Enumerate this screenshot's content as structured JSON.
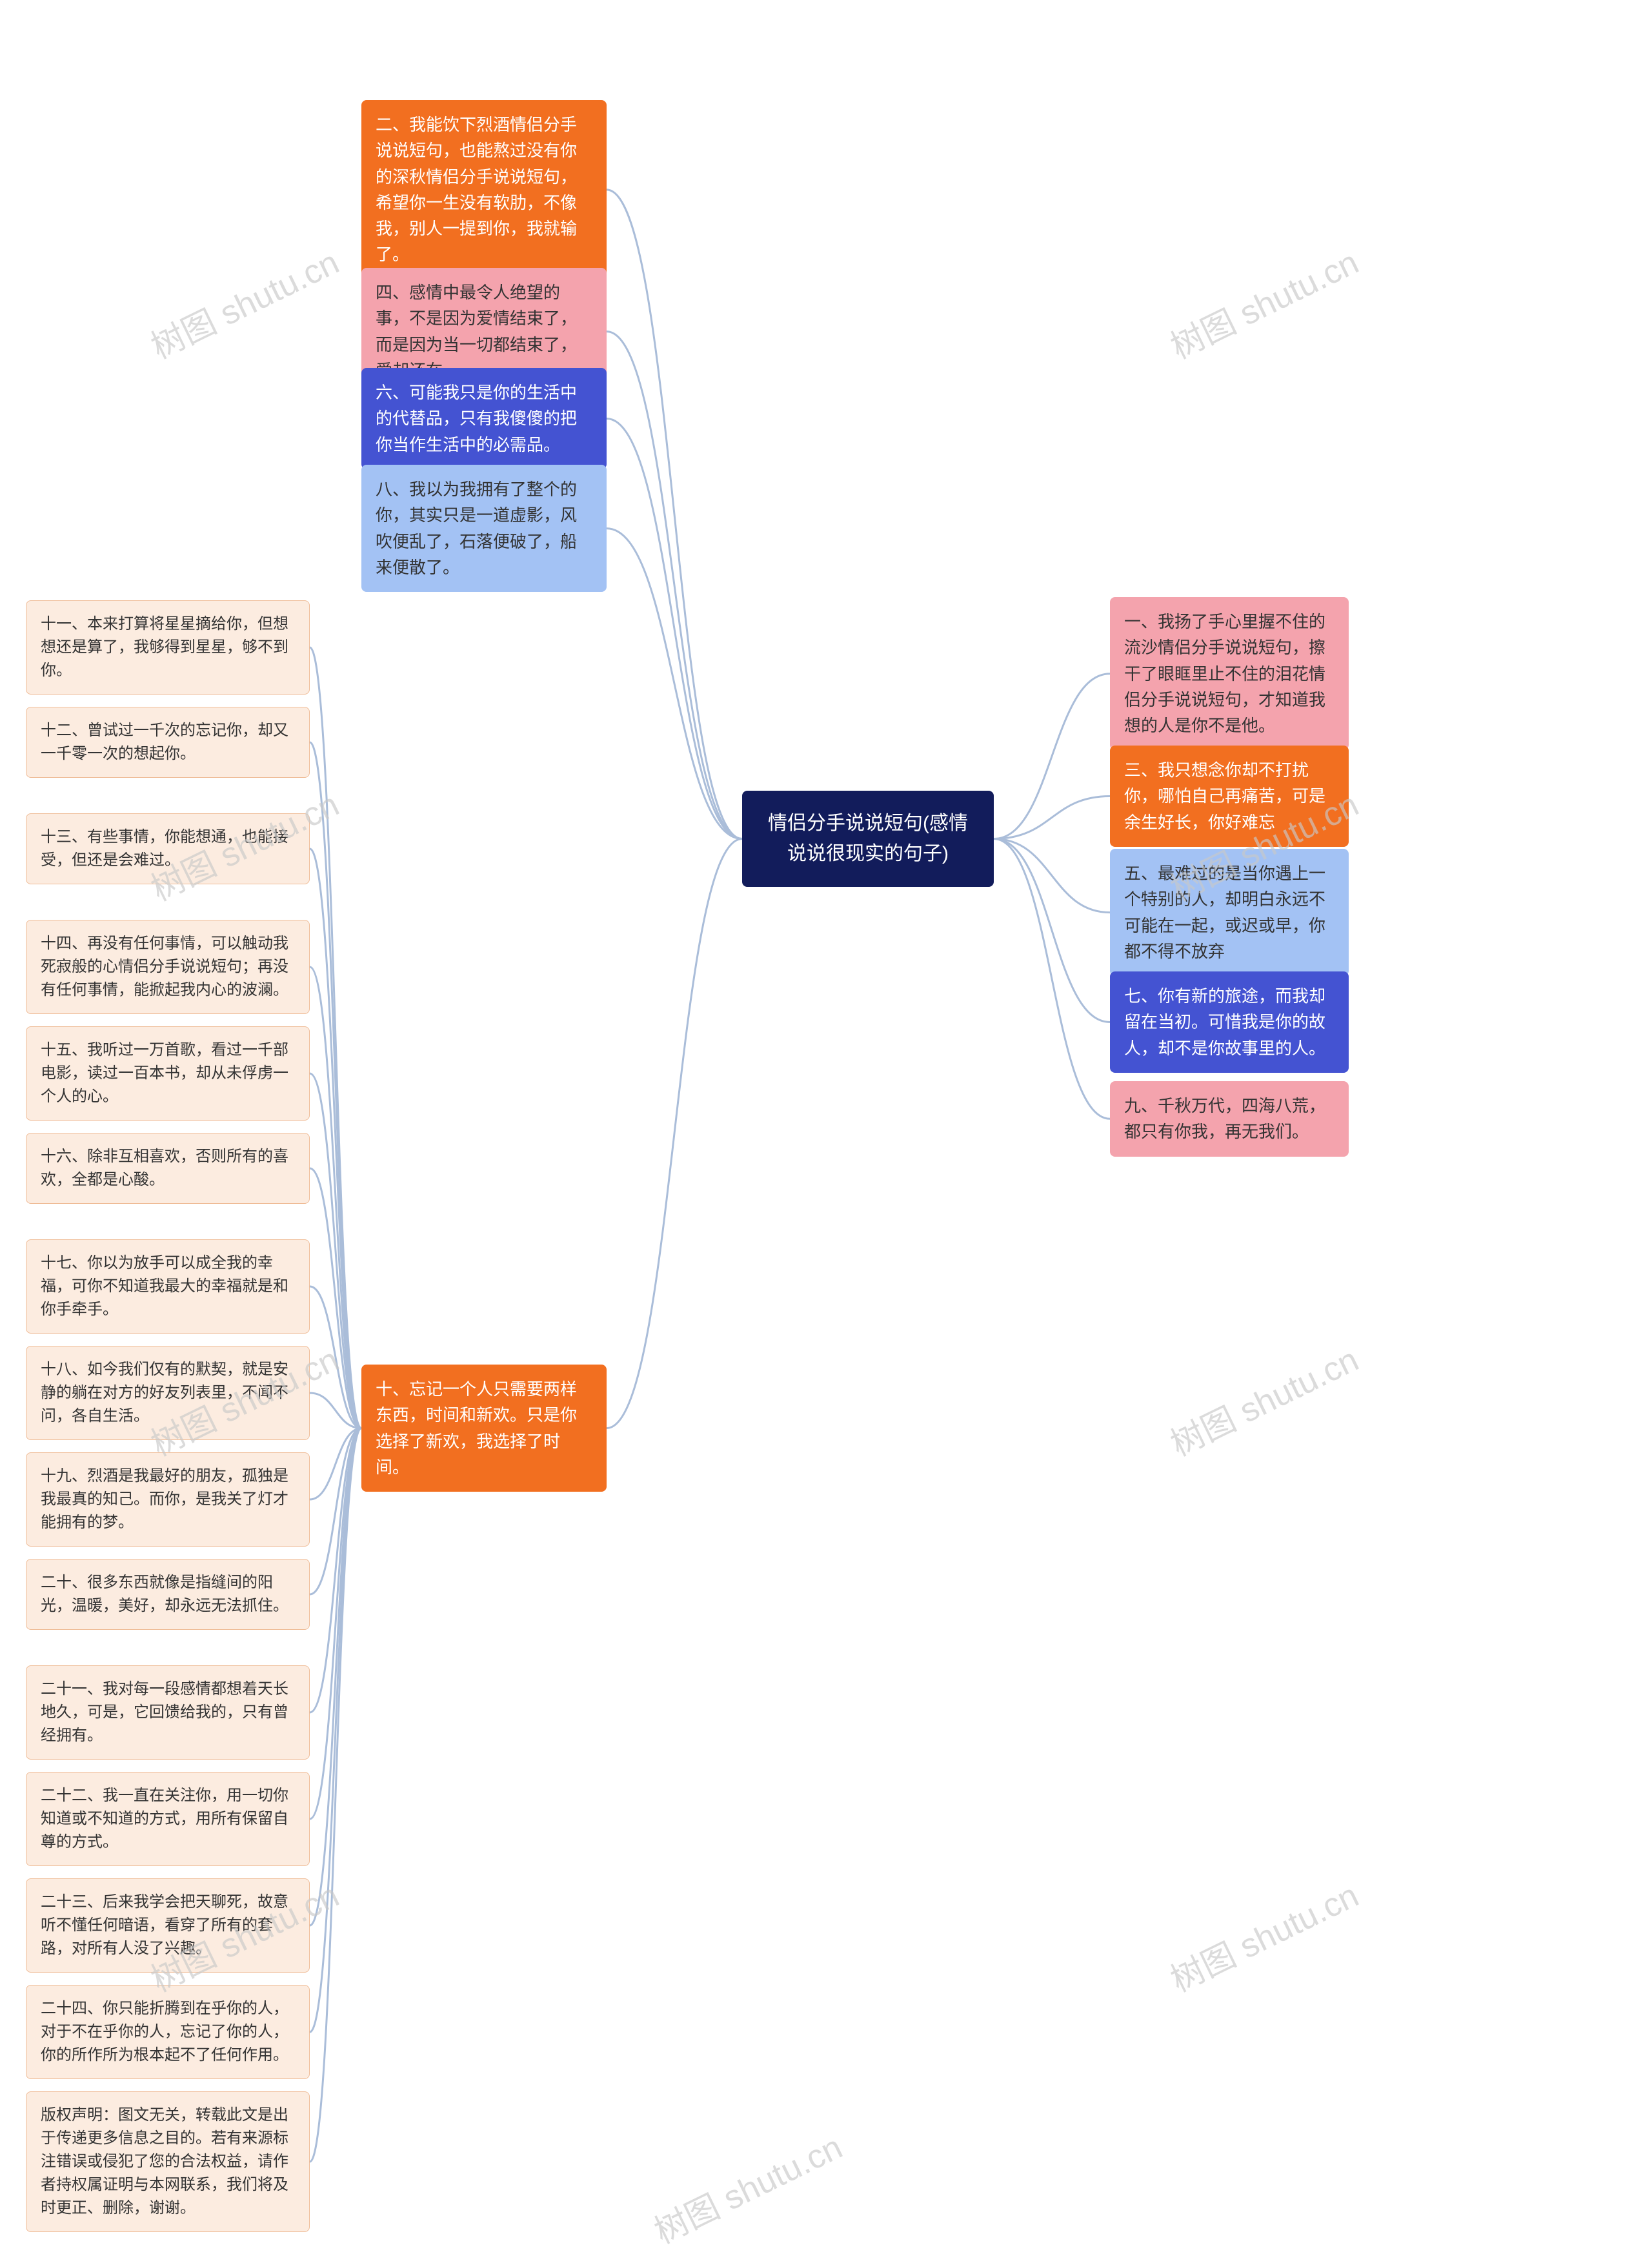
{
  "center": {
    "text": "情侣分手说说短句(感情说说很现实的句子)",
    "bg": "#121c5b",
    "fg": "#ffffff"
  },
  "leftBranches": [
    {
      "text": "二、我能饮下烈酒情侣分手说说短句，也能熬过没有你的深秋情侣分手说说短句，希望你一生没有软肋，不像我，别人一提到你，我就输了。",
      "bg": "#f26f20",
      "fg": "#ffffff"
    },
    {
      "text": "四、感情中最令人绝望的事，不是因为爱情结束了，而是因为当一切都结束了，爱却还在。",
      "bg": "#f4a3ad",
      "fg": "#333333"
    },
    {
      "text": "六、可能我只是你的生活中的代替品，只有我傻傻的把你当作生活中的必需品。",
      "bg": "#4453d2",
      "fg": "#ffffff"
    },
    {
      "text": "八、我以为我拥有了整个的你，其实只是一道虚影，风吹便乱了，石落便破了，船来便散了。",
      "bg": "#a3c2f4",
      "fg": "#333333"
    },
    {
      "text": "十、忘记一个人只需要两样东西，时间和新欢。只是你选择了新欢，我选择了时间。",
      "bg": "#f26f20",
      "fg": "#ffffff"
    }
  ],
  "rightBranches": [
    {
      "text": "一、我扬了手心里握不住的流沙情侣分手说说短句，擦干了眼眶里止不住的泪花情侣分手说说短句，才知道我想的人是你不是他。",
      "bg": "#f4a3ad",
      "fg": "#333333"
    },
    {
      "text": "三、我只想念你却不打扰你，哪怕自己再痛苦，可是余生好长，你好难忘",
      "bg": "#f26f20",
      "fg": "#ffffff"
    },
    {
      "text": "五、最难过的是当你遇上一个特别的人，却明白永远不可能在一起，或迟或早，你都不得不放弃",
      "bg": "#a3c2f4",
      "fg": "#333333"
    },
    {
      "text": "七、你有新的旅途，而我却留在当初。可惜我是你的故人，却不是你故事里的人。",
      "bg": "#4453d2",
      "fg": "#ffffff"
    },
    {
      "text": "九、千秋万代，四海八荒，都只有你我，再无我们。",
      "bg": "#f4a3ad",
      "fg": "#333333"
    }
  ],
  "leaves": [
    {
      "text": "十一、本来打算将星星摘给你，但想想还是算了，我够得到星星，够不到你。"
    },
    {
      "text": "十二、曾试过一千次的忘记你，却又一千零一次的想起你。"
    },
    {
      "text": "十三、有些事情，你能想通，也能接受，但还是会难过。"
    },
    {
      "text": "十四、再没有任何事情，可以触动我死寂般的心情侣分手说说短句；再没有任何事情，能掀起我内心的波澜。"
    },
    {
      "text": "十五、我听过一万首歌，看过一千部电影，读过一百本书，却从未俘虏一个人的心。"
    },
    {
      "text": "十六、除非互相喜欢，否则所有的喜欢，全都是心酸。"
    },
    {
      "text": "十七、你以为放手可以成全我的幸福，可你不知道我最大的幸福就是和你手牵手。"
    },
    {
      "text": "十八、如今我们仅有的默契，就是安静的躺在对方的好友列表里，不闻不问，各自生活。"
    },
    {
      "text": "十九、烈酒是我最好的朋友，孤独是我最真的知己。而你，是我关了灯才能拥有的梦。"
    },
    {
      "text": "二十、很多东西就像是指缝间的阳光，温暖，美好，却永远无法抓住。"
    },
    {
      "text": "二十一、我对每一段感情都想着天长地久，可是，它回馈给我的，只有曾经拥有。"
    },
    {
      "text": "二十二、我一直在关注你，用一切你知道或不知道的方式，用所有保留自尊的方式。"
    },
    {
      "text": "二十三、后来我学会把天聊死，故意听不懂任何暗语，看穿了所有的套路，对所有人没了兴趣。"
    },
    {
      "text": "二十四、你只能折腾到在乎你的人，对于不在乎你的人，忘记了你的人，你的所作所为根本起不了任何作用。"
    },
    {
      "text": "版权声明：图文无关，转载此文是出于传递更多信息之目的。若有来源标注错误或侵犯了您的合法权益，请作者持权属证明与本网联系，我们将及时更正、删除，谢谢。"
    }
  ],
  "leafStyle": {
    "bg": "#fcece0",
    "border": "#efbc97",
    "fg": "#333333"
  },
  "connector": {
    "stroke": "#aabdd9",
    "width": 3
  },
  "watermark": "树图 shutu.cn"
}
